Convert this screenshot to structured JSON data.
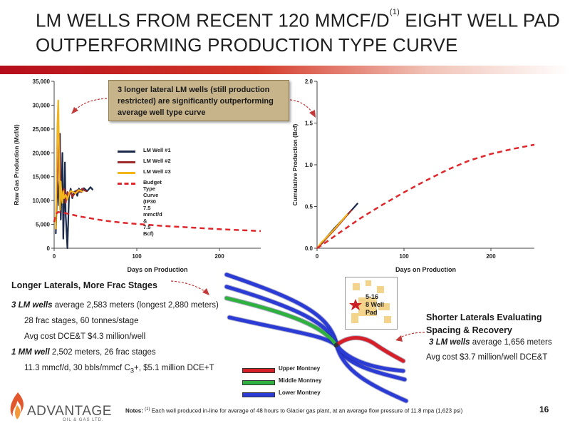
{
  "slide": {
    "title_line1": "LM WELLS FROM RECENT 120 MMCF/D",
    "title_sup": "(1)",
    "title_line1_tail": " EIGHT WELL PAD",
    "title_line2": "OUTPERFORMING PRODUCTION TYPE CURVE",
    "page_number": "16",
    "notes_prefix": "Notes: ",
    "notes_sup": "(1)",
    "notes_text": " Each well produced in-line for average of 48 hours to Glacier gas plant, at an average flow pressure of 11.8 mpa (1,623 psi)",
    "callout": "3 longer lateral LM wells (still production restricted) are significantly outperforming average well type curve",
    "logo": {
      "name": "ADVANTAGE",
      "sub": "OIL & GAS LTD."
    }
  },
  "colors": {
    "lm_well_1": "#1b2a4a",
    "lm_well_2": "#9e2a2a",
    "lm_well_3": "#f2b61b",
    "budget_curve": "#e0262b",
    "upper_montney": "#d61f26",
    "middle_montney": "#2fb13f",
    "lower_montney": "#2b3bd6",
    "brand_red": "#b50d1b"
  },
  "chart_data": [
    {
      "type": "line",
      "ylabel": "Raw Gas Production (Mcf/d)",
      "xlabel": "Days on Production",
      "xlim": [
        0,
        250
      ],
      "ylim": [
        0,
        35000
      ],
      "x_ticks": [
        "0",
        "100",
        "200"
      ],
      "y_ticks": [
        "0",
        "5,000",
        "10,000",
        "15,000",
        "20,000",
        "25,000",
        "30,000",
        "35,000"
      ],
      "legend_position": "center",
      "series": [
        {
          "name": "LM Well #1",
          "x": [
            2,
            4,
            6,
            7,
            8,
            9,
            10,
            11,
            12,
            13,
            14,
            16,
            18,
            20,
            22,
            24,
            26,
            28,
            30,
            33,
            36,
            40,
            44,
            47
          ],
          "y": [
            3000,
            14000,
            9000,
            24000,
            6000,
            12000,
            20000,
            2000,
            9000,
            18000,
            7000,
            0,
            11000,
            12500,
            10500,
            11800,
            12000,
            11000,
            12500,
            11800,
            12600,
            12000,
            12800,
            12200
          ]
        },
        {
          "name": "LM Well #2",
          "x": [
            2,
            4,
            6,
            8,
            10,
            12,
            14,
            16,
            18,
            20,
            22,
            25,
            28,
            31,
            34,
            37,
            40
          ],
          "y": [
            6000,
            15000,
            24000,
            10000,
            11500,
            12500,
            9500,
            11800,
            11000,
            12000,
            10800,
            11500,
            12200,
            11800,
            12500,
            12100,
            11900
          ]
        },
        {
          "name": "LM Well #3",
          "x": [
            2,
            3,
            4,
            5,
            6,
            7,
            8,
            9,
            10,
            11,
            12,
            14,
            16,
            18,
            20,
            23,
            26,
            30,
            35
          ],
          "y": [
            4000,
            16000,
            26000,
            31000,
            18000,
            8000,
            14000,
            11000,
            9500,
            12000,
            10500,
            11200,
            10200,
            11500,
            12000,
            11800,
            11500,
            12200,
            11800
          ]
        },
        {
          "name": "Budget Type Curve (IP30 7.5 mmcf/d & 7.5 Bcf)",
          "x": [
            0,
            2,
            5,
            10,
            15,
            20,
            30,
            40,
            60,
            80,
            100,
            130,
            160,
            200,
            250
          ],
          "y": [
            5500,
            7200,
            7600,
            7500,
            7300,
            7100,
            6700,
            6400,
            5800,
            5400,
            5100,
            4700,
            4400,
            4000,
            3600
          ]
        }
      ]
    },
    {
      "type": "line",
      "ylabel": "Cumulative Production (Bcf)",
      "xlabel": "Days on Production",
      "xlim": [
        0,
        250
      ],
      "ylim": [
        0,
        2.0
      ],
      "x_ticks": [
        "0",
        "100",
        "200"
      ],
      "y_ticks": [
        "0.0",
        "0.5",
        "1.0",
        "1.5",
        "2.0"
      ],
      "series": [
        {
          "name": "LM Well #1",
          "x": [
            0,
            5,
            10,
            20,
            30,
            40,
            47
          ],
          "y": [
            0,
            0.06,
            0.12,
            0.24,
            0.35,
            0.46,
            0.54
          ]
        },
        {
          "name": "LM Well #2",
          "x": [
            0,
            5,
            10,
            20,
            30,
            40
          ],
          "y": [
            0,
            0.05,
            0.11,
            0.22,
            0.34,
            0.46
          ]
        },
        {
          "name": "LM Well #3",
          "x": [
            0,
            5,
            10,
            20,
            30,
            35
          ],
          "y": [
            0,
            0.07,
            0.12,
            0.23,
            0.35,
            0.41
          ]
        },
        {
          "name": "Budget Type Curve",
          "x": [
            0,
            10,
            25,
            50,
            75,
            100,
            125,
            150,
            175,
            200,
            225,
            250
          ],
          "y": [
            0,
            0.07,
            0.18,
            0.36,
            0.52,
            0.67,
            0.81,
            0.94,
            1.05,
            1.13,
            1.19,
            1.24
          ]
        }
      ]
    }
  ],
  "left_text": {
    "heading": "Longer Laterals, More Frac Stages",
    "l1_bold": "3 LM wells",
    "l1_rest": " average 2,583 meters (longest 2,880 meters)",
    "l2": "28 frac stages, 60 tonnes/stage",
    "l3": "Avg cost DCE&T $4.3 million/well",
    "l4_bold": "1 MM well",
    "l4_rest": " 2,502 meters, 26 frac stages",
    "l5_pre": "11.3 mmcf/d, 30 bbls/mmcf C",
    "l5_sub": "3",
    "l5_post": "+, $5.1 million DCE+T"
  },
  "right_text": {
    "heading": "Shorter Laterals Evaluating Spacing & Recovery",
    "l1_bold": "3 LM wells",
    "l1_rest": " average 1,656 meters",
    "l2": "Avg cost $3.7 million/well DCE&T"
  },
  "pad_map": {
    "label": "5-16\n8 Well\nPad"
  },
  "montney_legend": [
    "Upper Montney",
    "Middle Montney",
    "Lower Montney"
  ]
}
